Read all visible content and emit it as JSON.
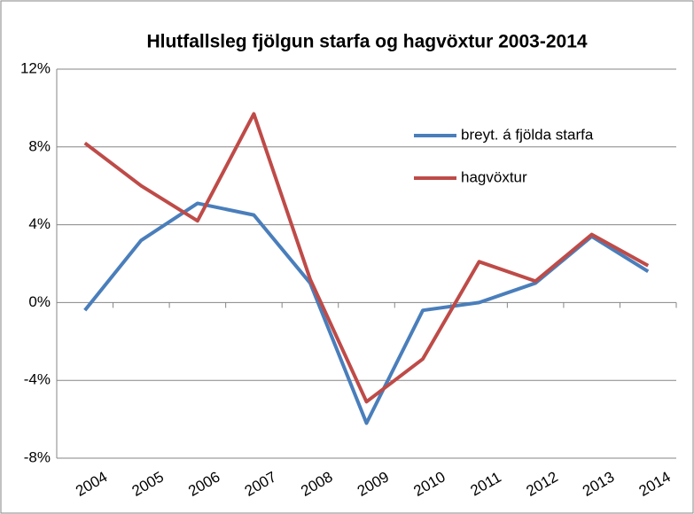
{
  "chart_data": {
    "type": "line",
    "title": "Hlutfallsleg fjölgun starfa og hagvöxtur 2003-2014",
    "categories": [
      "2004",
      "2005",
      "2006",
      "2007",
      "2008",
      "2009",
      "2010",
      "2011",
      "2012",
      "2013",
      "2014"
    ],
    "series": [
      {
        "name": "breyt. á fjölda starfa",
        "color": "#4a7ebb",
        "values": [
          -0.4,
          3.2,
          5.1,
          4.5,
          1.0,
          -6.2,
          -0.4,
          0.0,
          1.0,
          3.4,
          1.6
        ]
      },
      {
        "name": "hagvöxtur",
        "color": "#be4b48",
        "values": [
          8.2,
          6.0,
          4.2,
          9.7,
          1.2,
          -5.1,
          -2.9,
          2.1,
          1.1,
          3.5,
          1.9
        ]
      }
    ],
    "ylim": [
      -8,
      12
    ],
    "yticks": [
      {
        "value": -8,
        "label": "-8%"
      },
      {
        "value": -4,
        "label": "-4%"
      },
      {
        "value": 0,
        "label": "0%"
      },
      {
        "value": 4,
        "label": "4%"
      },
      {
        "value": 8,
        "label": "8%"
      },
      {
        "value": 12,
        "label": "12%"
      }
    ],
    "grid": true,
    "legend": "upper right"
  }
}
